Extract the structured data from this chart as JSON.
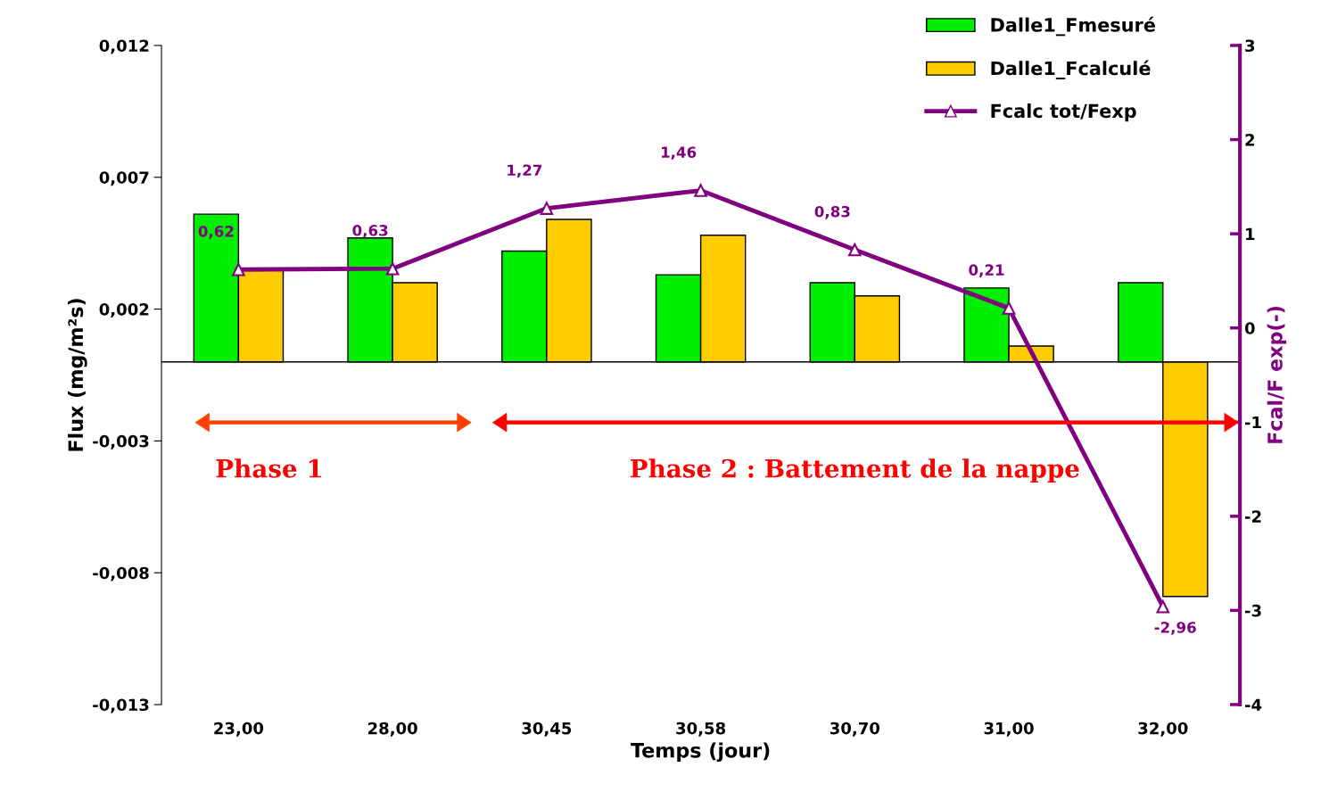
{
  "chart_data": {
    "type": "bar",
    "categories": [
      "23,00",
      "28,00",
      "30,45",
      "30,58",
      "30,70",
      "31,00",
      "32,00"
    ],
    "xlabel": "Temps (jour)",
    "ylabel": "Flux (mg/m²s)",
    "y2label": "Fcal/F exp(-)",
    "series": [
      {
        "name": "Dalle1_Fmesuré",
        "color": "#00ee00",
        "values": [
          0.0056,
          0.0047,
          0.0042,
          0.0033,
          0.003,
          0.0028,
          0.003
        ]
      },
      {
        "name": "Dalle1_Fcalculé",
        "color": "#ffcc00",
        "values": [
          0.0035,
          0.003,
          0.0054,
          0.0048,
          0.0025,
          0.0006,
          -0.0089
        ]
      },
      {
        "name": "Fcalc tot/Fexp",
        "type": "line",
        "axis": "y2",
        "color": "#800080",
        "marker": "triangle",
        "values": [
          0.62,
          0.63,
          1.27,
          1.46,
          0.83,
          0.21,
          -2.96
        ],
        "value_labels": [
          "0,62",
          "0,63",
          "1,27",
          "1,46",
          "0,83",
          "0,21",
          "-2,96"
        ]
      }
    ],
    "ylim": [
      -0.013,
      0.012
    ],
    "yticks": [
      {
        "value": -0.013,
        "label": "-0,013"
      },
      {
        "value": -0.008,
        "label": "-0,008"
      },
      {
        "value": -0.003,
        "label": "-0,003"
      },
      {
        "value": 0.002,
        "label": "0,002"
      },
      {
        "value": 0.007,
        "label": "0,007"
      },
      {
        "value": 0.012,
        "label": "0,012"
      }
    ],
    "y2lim": [
      -4,
      3
    ],
    "y2ticks": [
      -4,
      -3,
      -2,
      -1,
      0,
      1,
      2,
      3
    ],
    "annotations": [
      "Phase 1",
      "Phase 2 : Battement de la nappe"
    ],
    "legend": "top right",
    "grid": false
  }
}
